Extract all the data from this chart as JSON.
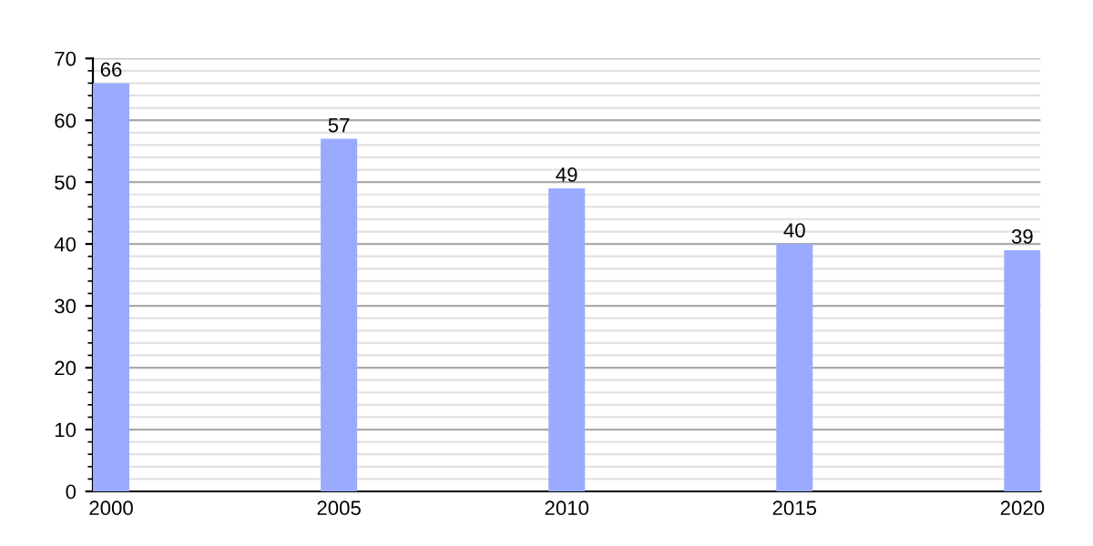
{
  "chart_data": {
    "type": "bar",
    "categories": [
      "2000",
      "2005",
      "2010",
      "2015",
      "2020"
    ],
    "values": [
      66,
      57,
      49,
      40,
      39
    ],
    "color": "#99aaff",
    "ylim": [
      0,
      70
    ],
    "yticks": [
      0,
      10,
      20,
      30,
      40,
      50,
      60,
      70
    ],
    "grid": "y",
    "data_labels": true
  }
}
